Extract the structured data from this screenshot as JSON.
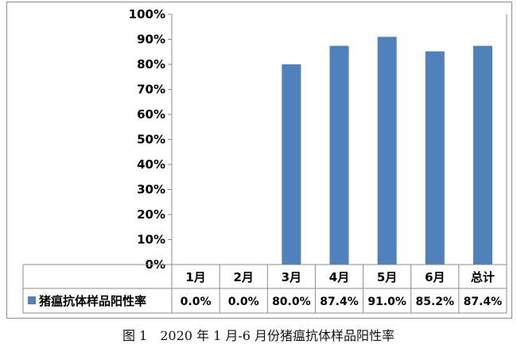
{
  "caption": "图 1　2020 年 1 月-6 月份猪瘟抗体样品阳性率",
  "chart_data": {
    "type": "bar",
    "categories": [
      "1月",
      "2月",
      "3月",
      "4月",
      "5月",
      "6月",
      "总计"
    ],
    "series": [
      {
        "name": "猪瘟抗体样品阳性率",
        "values": [
          0.0,
          0.0,
          80.0,
          87.4,
          91.0,
          85.2,
          87.4
        ],
        "value_labels": [
          "0.0%",
          "0.0%",
          "80.0%",
          "87.4%",
          "91.0%",
          "85.2%",
          "87.4%"
        ]
      }
    ],
    "ylim": [
      0,
      100
    ],
    "yticks": [
      0,
      10,
      20,
      30,
      40,
      50,
      60,
      70,
      80,
      90,
      100
    ],
    "ytick_labels": [
      "0%",
      "10%",
      "20%",
      "30%",
      "40%",
      "50%",
      "60%",
      "70%",
      "80%",
      "90%",
      "100%"
    ],
    "grid": false,
    "data_table": true,
    "bar_color": "#4f81bd"
  }
}
